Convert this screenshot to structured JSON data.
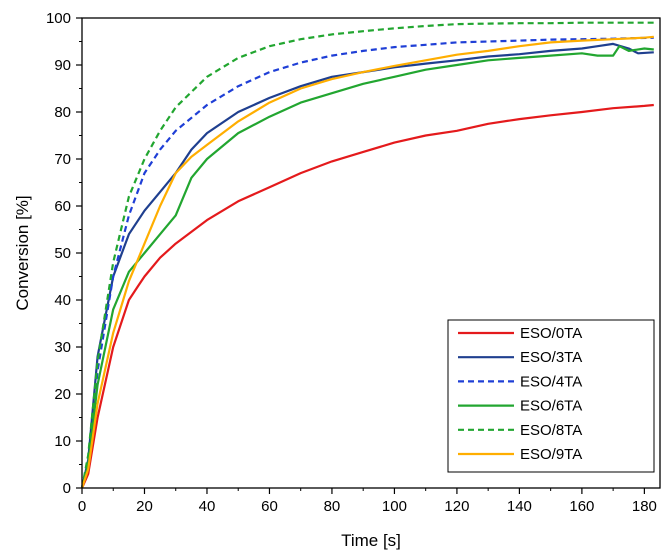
{
  "chart_data": {
    "type": "line",
    "title": "",
    "xlabel": "Time [s]",
    "ylabel": "Conversion [%]",
    "xlim": [
      0,
      185
    ],
    "ylim": [
      0,
      100
    ],
    "xticks": [
      0,
      20,
      40,
      60,
      80,
      100,
      120,
      140,
      160,
      180
    ],
    "yticks": [
      0,
      10,
      20,
      30,
      40,
      50,
      60,
      70,
      80,
      90,
      100
    ],
    "grid": false,
    "legend_position": "bottom-right",
    "series": [
      {
        "name": "ESO/0TA",
        "color": "#e41a1c",
        "dash": "solid",
        "x": [
          0,
          2,
          5,
          10,
          15,
          18,
          20,
          25,
          30,
          40,
          50,
          60,
          70,
          80,
          90,
          100,
          110,
          120,
          130,
          140,
          150,
          160,
          170,
          180,
          183
        ],
        "y": [
          0,
          3,
          15,
          30,
          40,
          43,
          45,
          49,
          52,
          57,
          61,
          64,
          67,
          69.5,
          71.5,
          73.5,
          75,
          76,
          77.5,
          78.5,
          79.3,
          80,
          80.8,
          81.3,
          81.5
        ]
      },
      {
        "name": "ESO/3TA",
        "color": "#1f3f8f",
        "dash": "solid",
        "x": [
          0,
          2,
          5,
          10,
          15,
          20,
          25,
          30,
          35,
          40,
          50,
          60,
          70,
          80,
          90,
          100,
          110,
          120,
          130,
          140,
          150,
          160,
          165,
          170,
          175,
          178,
          183
        ],
        "y": [
          0,
          6,
          28,
          45,
          54,
          59,
          63,
          67,
          72,
          75.5,
          80,
          83,
          85.5,
          87.5,
          88.5,
          89.5,
          90.3,
          91,
          91.8,
          92.3,
          93,
          93.5,
          94,
          94.5,
          93.5,
          92.5,
          92.7
        ]
      },
      {
        "name": "ESO/4TA",
        "color": "#1f3fd6",
        "dash": "dashed",
        "x": [
          0,
          2,
          5,
          10,
          15,
          20,
          25,
          30,
          40,
          50,
          60,
          70,
          80,
          90,
          100,
          110,
          120,
          130,
          140,
          150,
          160,
          170,
          183
        ],
        "y": [
          0,
          6,
          25,
          45,
          58,
          67,
          72,
          76,
          81.5,
          85.5,
          88.5,
          90.5,
          92,
          93,
          93.8,
          94.3,
          94.8,
          95,
          95.2,
          95.4,
          95.5,
          95.6,
          95.8
        ]
      },
      {
        "name": "ESO/6TA",
        "color": "#22a630",
        "dash": "solid",
        "x": [
          0,
          2,
          5,
          10,
          15,
          20,
          25,
          30,
          35,
          40,
          50,
          60,
          70,
          80,
          90,
          100,
          110,
          120,
          130,
          140,
          150,
          160,
          165,
          170,
          172,
          175,
          180,
          183
        ],
        "y": [
          0,
          5,
          22,
          38,
          46,
          50,
          54,
          58,
          66,
          70,
          75.5,
          79,
          82,
          84,
          86,
          87.5,
          89,
          90,
          91,
          91.5,
          92,
          92.5,
          92,
          92,
          94,
          93,
          93.5,
          93.3
        ]
      },
      {
        "name": "ESO/8TA",
        "color": "#22a630",
        "dash": "dashed",
        "x": [
          0,
          2,
          5,
          10,
          15,
          20,
          25,
          30,
          40,
          50,
          60,
          70,
          80,
          90,
          100,
          110,
          120,
          130,
          140,
          150,
          160,
          170,
          183
        ],
        "y": [
          0,
          7,
          27,
          48,
          62,
          70,
          76,
          81,
          87.5,
          91.5,
          94,
          95.5,
          96.5,
          97.2,
          97.8,
          98.3,
          98.7,
          98.8,
          98.9,
          98.9,
          99,
          99,
          99
        ]
      },
      {
        "name": "ESO/9TA",
        "color": "#ffae00",
        "dash": "solid",
        "x": [
          0,
          2,
          5,
          10,
          15,
          20,
          25,
          30,
          35,
          40,
          50,
          60,
          70,
          80,
          90,
          100,
          110,
          120,
          130,
          140,
          150,
          160,
          170,
          180,
          183
        ],
        "y": [
          0,
          4,
          18,
          33,
          44,
          52,
          60,
          67,
          70.5,
          73,
          78,
          82,
          85,
          87,
          88.5,
          89.8,
          91,
          92.2,
          93,
          94,
          94.8,
          95.2,
          95.5,
          95.8,
          96
        ]
      }
    ]
  }
}
